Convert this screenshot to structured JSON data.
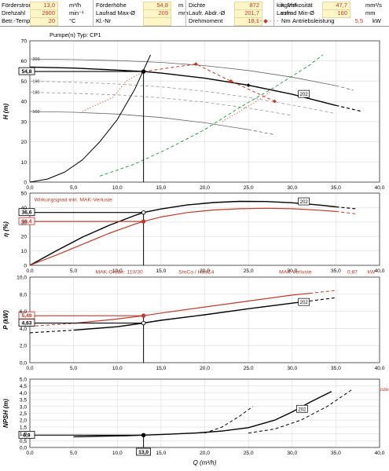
{
  "header": {
    "rows": [
      [
        {
          "label": "Förderstrom",
          "value": "13,0",
          "unit": "m³/h"
        },
        {
          "label": "Förderhöhe",
          "value": "54,8",
          "unit": "m"
        },
        {
          "label": "Dichte",
          "value": "872",
          "unit": "kg/m³"
        },
        {
          "label": "kin. Viskosität",
          "value": "47,7",
          "unit": "mm²/s"
        }
      ],
      [
        {
          "label": "Drehzahl",
          "value": "2900",
          "unit": "min⁻¹"
        },
        {
          "label": "Laufrad Max-Ø",
          "value": "209",
          "unit": "mm"
        },
        {
          "label": "Laufr. Abdr.-Ø",
          "value": "201,7",
          "unit": "mm"
        },
        {
          "label": "Laufrad Min-Ø",
          "value": "160",
          "unit": "mm"
        }
      ],
      [
        {
          "label": "Betr.-Temp tA",
          "value": "20",
          "unit": "°C"
        },
        {
          "label": "Kl.-Nr",
          "value": "",
          "unit": ""
        },
        {
          "label": "Drehmoment",
          "value": "18,1",
          "unit": "Nm"
        },
        {
          "label": "Antriebsleistung",
          "value": "5,5",
          "unit": "kW"
        }
      ]
    ]
  },
  "chart_data": [
    {
      "type": "line",
      "id": "head",
      "title": "Pumpe(n) Typ:   CP1",
      "ylabel": "H (m)",
      "xlim": [
        0,
        40
      ],
      "ylim": [
        0,
        70
      ],
      "xticks": [
        "0,0",
        "5,0",
        "10,0",
        "15,0",
        "20,0",
        "25,0",
        "30,0",
        "35,0",
        "40,0"
      ],
      "yticks": [
        "0",
        "10",
        "20",
        "30",
        "40",
        "50",
        "60",
        "70"
      ],
      "grid": true,
      "operating_point": {
        "x": 13.0,
        "y": 54.8,
        "label": "54,8"
      },
      "series": [
        {
          "name": "202",
          "color": "#000000",
          "style": "solid",
          "width": 1.4,
          "x": [
            0,
            5,
            10,
            13,
            15,
            20,
            25,
            30,
            35
          ],
          "y": [
            57,
            56.5,
            55.5,
            54.8,
            54,
            51.5,
            48,
            43.5,
            38
          ]
        },
        {
          "color": "#000000",
          "style": "dashed",
          "width": 1.2,
          "x": [
            35,
            38
          ],
          "y": [
            38,
            35
          ]
        },
        {
          "name": "209",
          "color": "#666666",
          "style": "solid",
          "width": 0.8,
          "x": [
            0,
            5,
            10,
            15,
            20,
            25,
            30,
            35
          ],
          "y": [
            61,
            60.7,
            60.2,
            59.3,
            57.7,
            55.3,
            52,
            47.8
          ]
        },
        {
          "color": "#666666",
          "style": "dashed",
          "width": 0.8,
          "x": [
            35,
            37
          ],
          "y": [
            47.8,
            45.5
          ]
        },
        {
          "color": "#999999",
          "style": "dashed",
          "width": 0.8,
          "x": [
            0,
            5,
            10,
            15,
            20,
            25,
            30,
            35
          ],
          "y": [
            50,
            49.5,
            48.6,
            47.2,
            45,
            42,
            38.2,
            34
          ]
        },
        {
          "color": "#999999",
          "style": "dashed",
          "width": 0.8,
          "x": [
            0,
            5,
            10,
            15,
            20,
            25,
            30
          ],
          "y": [
            44.5,
            44,
            43.2,
            41.8,
            39.6,
            36.7,
            33
          ]
        },
        {
          "name": "160",
          "color": "#666666",
          "style": "solid",
          "width": 0.8,
          "x": [
            0,
            5,
            10,
            15,
            20,
            25
          ],
          "y": [
            35,
            34.6,
            33.7,
            32,
            29.4,
            26
          ]
        },
        {
          "color": "#666666",
          "style": "dashed",
          "width": 0.8,
          "x": [
            25,
            28
          ],
          "y": [
            26,
            23.5
          ]
        },
        {
          "name": "system",
          "color": "#000000",
          "style": "solid",
          "width": 1,
          "x": [
            0,
            2,
            4,
            6,
            8,
            10,
            12,
            13.8
          ],
          "y": [
            0,
            1.5,
            5,
            11,
            20,
            31,
            46,
            63
          ]
        },
        {
          "color": "#2e9e4e",
          "style": "dashed",
          "width": 1,
          "x": [
            8,
            12,
            16,
            20,
            24,
            28,
            32,
            33.5
          ],
          "y": [
            3,
            9,
            17,
            26,
            37,
            47,
            58,
            63
          ]
        },
        {
          "color": "#e06050",
          "style": "dotted",
          "width": 0.9,
          "x": [
            6,
            9.5,
            11,
            13
          ],
          "y": [
            35,
            42,
            50,
            54.8
          ]
        },
        {
          "color": "#e06050",
          "style": "dotted",
          "width": 0.9,
          "x": [
            22,
            24,
            27,
            28
          ],
          "y": [
            30,
            35,
            43,
            47
          ]
        },
        {
          "color": "#c0392b",
          "style": "dashed",
          "width": 1,
          "x": [
            13,
            19,
            23,
            28
          ],
          "y": [
            54.8,
            58.5,
            50,
            40
          ]
        }
      ],
      "points": [
        {
          "x": 19,
          "y": 58.5,
          "color": "#c0392b"
        },
        {
          "x": 23,
          "y": 50,
          "color": "#c0392b"
        },
        {
          "x": 28,
          "y": 40,
          "color": "#c0392b"
        },
        {
          "x": 25,
          "y": 48,
          "color": "#000000"
        }
      ],
      "labels": [
        {
          "x": 0.3,
          "y": 61,
          "text": "209"
        },
        {
          "x": 0.3,
          "y": 50,
          "text": "190"
        },
        {
          "x": 0.3,
          "y": 44.5,
          "text": "180"
        },
        {
          "x": 0.3,
          "y": 35,
          "text": "160"
        }
      ],
      "boxed_labels": [
        {
          "x": 30.8,
          "y": 43.5,
          "text": "202"
        }
      ],
      "annotations": []
    },
    {
      "type": "line",
      "id": "efficiency",
      "ylabel": "η (%)",
      "xlim": [
        0,
        40
      ],
      "ylim": [
        0,
        50
      ],
      "xticks": [
        "0,0",
        "5,0",
        "10,0",
        "15,0",
        "20,0",
        "25,0",
        "30,0",
        "35,0",
        "40,0"
      ],
      "yticks": [
        "0",
        "10",
        "20",
        "30",
        "40",
        "50"
      ],
      "grid": true,
      "operating_points": [
        {
          "x": 13.0,
          "y": 36.6,
          "label": "36,6",
          "color": "#000000"
        },
        {
          "x": 13.0,
          "y": 30.4,
          "label": "30,4",
          "color": "#c0392b"
        }
      ],
      "series": [
        {
          "name": "202",
          "color": "#000000",
          "style": "solid",
          "width": 1.4,
          "x": [
            0,
            3,
            6,
            9,
            12,
            13,
            15,
            18,
            21,
            24,
            27,
            30,
            33,
            35
          ],
          "y": [
            0,
            10,
            19.5,
            27.5,
            34.5,
            36.6,
            39,
            41.8,
            43.5,
            44.3,
            44.2,
            43.3,
            41.8,
            40.5
          ]
        },
        {
          "color": "#000000",
          "style": "dashed",
          "width": 1.2,
          "x": [
            35,
            37.5
          ],
          "y": [
            40.5,
            39
          ]
        },
        {
          "name": "Wirkungsgrad inkl. MAK-Verluste",
          "color": "#c0392b",
          "style": "solid",
          "width": 1.2,
          "x": [
            0,
            3,
            6,
            9,
            12,
            13,
            15,
            18,
            21,
            24,
            27,
            30,
            33,
            35
          ],
          "y": [
            0,
            7,
            14.5,
            22,
            28.5,
            30.4,
            33.5,
            36.5,
            38.3,
            39.2,
            39.5,
            39.2,
            38.2,
            37.3
          ]
        },
        {
          "color": "#c0392b",
          "style": "dashed",
          "width": 1,
          "x": [
            35,
            37.5
          ],
          "y": [
            37.3,
            35.5
          ]
        }
      ],
      "points": [],
      "labels": [],
      "boxed_labels": [
        {
          "x": 30.8,
          "y": 44,
          "text": "202"
        }
      ],
      "annotations": [
        {
          "x": 0.5,
          "y": 45.5,
          "text": "Wirkungsgrad inkl. MAK-Verluste",
          "color": "#c0392b"
        }
      ]
    },
    {
      "type": "line",
      "id": "power",
      "ylabel": "P (kW)",
      "xlim": [
        0,
        40
      ],
      "ylim": [
        0,
        10
      ],
      "xticks": [
        "0,0",
        "5,0",
        "10,0",
        "15,0",
        "20,0",
        "25,0",
        "30,0",
        "35,0",
        "40,0"
      ],
      "yticks": [
        "0,0",
        "2,0",
        "4,0",
        "6,0",
        "8,0",
        "10,0"
      ],
      "grid": true,
      "operating_points": [
        {
          "x": 13.0,
          "y": 4.63,
          "label": "4,63",
          "color": "#000000"
        },
        {
          "x": 13.0,
          "y": 5.49,
          "label": "5,49",
          "color": "#c0392b"
        }
      ],
      "series": [
        {
          "name": "202",
          "color": "#000000",
          "style": "solid",
          "width": 1.4,
          "x": [
            5,
            10,
            13,
            15,
            20,
            25,
            30,
            32
          ],
          "y": [
            3.8,
            4.2,
            4.63,
            4.95,
            5.6,
            6.3,
            6.95,
            7.2
          ]
        },
        {
          "color": "#000000",
          "style": "dashed",
          "width": 1.1,
          "x": [
            0,
            5
          ],
          "y": [
            3.5,
            3.8
          ]
        },
        {
          "color": "#000000",
          "style": "dashed",
          "width": 1.1,
          "x": [
            32,
            35
          ],
          "y": [
            7.2,
            7.6
          ]
        },
        {
          "color": "#c0392b",
          "style": "solid",
          "width": 1.2,
          "x": [
            5,
            10,
            13,
            15,
            20,
            25,
            30,
            32
          ],
          "y": [
            4.6,
            5.1,
            5.49,
            5.8,
            6.5,
            7.2,
            7.9,
            8.1
          ]
        },
        {
          "color": "#c0392b",
          "style": "dashed",
          "width": 1,
          "x": [
            0,
            5
          ],
          "y": [
            4.25,
            4.6
          ]
        },
        {
          "color": "#c0392b",
          "style": "dashed",
          "width": 1,
          "x": [
            32,
            35
          ],
          "y": [
            8.1,
            8.45
          ]
        }
      ],
      "points": [],
      "labels": [],
      "boxed_labels": [
        {
          "x": 30.8,
          "y": 7.05,
          "text": "202"
        }
      ],
      "annotations": [
        {
          "x": 7.5,
          "y": 10.6,
          "text": "MAK-Größe: 110/30",
          "color": "#c0392b"
        },
        {
          "x": 17,
          "y": 10.6,
          "text": "SmCo / HasC4",
          "color": "#c0392b"
        },
        {
          "x": 28.5,
          "y": 10.6,
          "text": "MAK-Verluste",
          "color": "#c0392b"
        },
        {
          "x": 36.3,
          "y": 10.6,
          "text": "0,87",
          "color": "#c0392b"
        },
        {
          "x": 39.5,
          "y": 10.6,
          "text": "kW",
          "color": "#c0392b"
        },
        {
          "x": 12,
          "y": -3.1,
          "text": "ca.",
          "color": "#c0392b"
        },
        {
          "x": 14.3,
          "y": -3.1,
          "text": "0,42",
          "color": "#c0392b"
        },
        {
          "x": 17,
          "y": -3.1,
          "text": "kW",
          "color": "#c0392b"
        },
        {
          "x": 20,
          "y": -3.1,
          "text": "Wirbelstromverluste",
          "color": "#c0392b"
        },
        {
          "x": 28.7,
          "y": -3.1,
          "text": "ca.",
          "color": "#c0392b"
        },
        {
          "x": 30.9,
          "y": -3.1,
          "text": "0,44",
          "color": "#c0392b"
        },
        {
          "x": 33.6,
          "y": -3.1,
          "text": "kW",
          "color": "#c0392b"
        },
        {
          "x": 36,
          "y": -3.1,
          "text": "Viskositätsverluste",
          "color": "#c0392b"
        }
      ]
    },
    {
      "type": "line",
      "id": "npsh",
      "ylabel": "NPSH (m)",
      "xlabel": "Q (m³/h)",
      "xlim": [
        0,
        40
      ],
      "ylim": [
        0,
        5
      ],
      "xticks": [
        "0,0",
        "5,0",
        "10,0",
        "15,0",
        "20,0",
        "25,0",
        "30,0",
        "35,0",
        "40,0"
      ],
      "yticks": [
        "0,0",
        "0,5",
        "1,0",
        "1,5",
        "2,0",
        "2,5",
        "3,0",
        "3,5",
        "4,0",
        "4,5",
        "5,0"
      ],
      "grid": true,
      "operating_point": {
        "x": 13.0,
        "y": 0.9,
        "label": "0,9",
        "xlabel": "13,0"
      },
      "series": [
        {
          "name": "202",
          "color": "#000000",
          "style": "solid",
          "width": 1.4,
          "x": [
            5,
            8,
            11,
            13,
            16,
            19,
            22,
            25,
            28,
            30,
            32,
            34.5
          ],
          "y": [
            0.78,
            0.82,
            0.86,
            0.9,
            0.97,
            1.06,
            1.2,
            1.45,
            2.0,
            2.6,
            3.3,
            4.1
          ]
        },
        {
          "color": "#000000",
          "style": "dashed",
          "width": 1,
          "x": [
            20,
            22,
            24,
            25.5
          ],
          "y": [
            1.05,
            1.5,
            2.3,
            3.0
          ]
        },
        {
          "color": "#000000",
          "style": "dashed",
          "width": 1,
          "x": [
            25,
            28,
            31,
            34,
            37
          ],
          "y": [
            1.05,
            1.35,
            2.0,
            3.0,
            4.3
          ]
        }
      ],
      "points": [],
      "labels": [],
      "boxed_labels": [
        {
          "x": 30.6,
          "y": 2.8,
          "text": "202"
        }
      ],
      "annotations": []
    }
  ]
}
